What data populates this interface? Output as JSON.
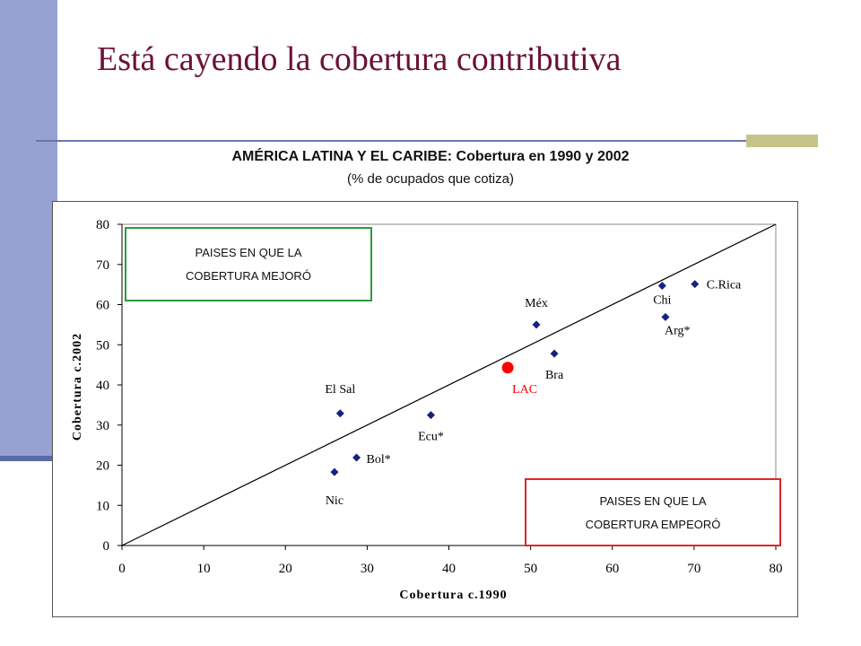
{
  "slide": {
    "title": "Está cayendo  la cobertura contributiva"
  },
  "chart_heading": {
    "line1": "AMÉRICA LATINA Y EL CARIBE: Cobertura en 1990 y 2002",
    "line2": "(% de ocupados que cotiza)"
  },
  "annotations": {
    "improved_line1": "PAISES EN QUE LA",
    "improved_line2": "COBERTURA MEJORÓ",
    "worsened_line1": "PAISES EN QUE LA",
    "worsened_line2": "COBERTURA EMPEORÓ"
  },
  "colors": {
    "point": "#13237f",
    "highlight": "#ff0000",
    "improved_border": "#2e9a3e",
    "worsened_border": "#e0262a"
  },
  "chart_data": {
    "type": "scatter",
    "xlabel": "Cobertura c.1990",
    "ylabel": "Cobertura c.2002",
    "xlim": [
      0,
      80
    ],
    "ylim": [
      0,
      80
    ],
    "xticks": [
      0,
      10,
      20,
      30,
      40,
      50,
      60,
      70,
      80
    ],
    "yticks": [
      0,
      10,
      20,
      30,
      40,
      50,
      60,
      70,
      80
    ],
    "grid": false,
    "reference_line": [
      [
        0,
        0
      ],
      [
        80,
        80
      ]
    ],
    "points": [
      {
        "label": "C.Rica",
        "x": 70.1,
        "y": 65.1
      },
      {
        "label": "Chi",
        "x": 66.1,
        "y": 64.7
      },
      {
        "label": "Arg*",
        "x": 66.5,
        "y": 56.9
      },
      {
        "label": "Méx",
        "x": 50.7,
        "y": 55.0
      },
      {
        "label": "Bra",
        "x": 52.9,
        "y": 47.8
      },
      {
        "label": "Ecu*",
        "x": 37.8,
        "y": 32.5
      },
      {
        "label": "El Sal",
        "x": 26.7,
        "y": 32.9
      },
      {
        "label": "Bol*",
        "x": 28.7,
        "y": 21.9
      },
      {
        "label": "Nic",
        "x": 26.0,
        "y": 18.3
      }
    ],
    "highlight": {
      "label": "LAC",
      "x": 47.2,
      "y": 44.3
    }
  }
}
